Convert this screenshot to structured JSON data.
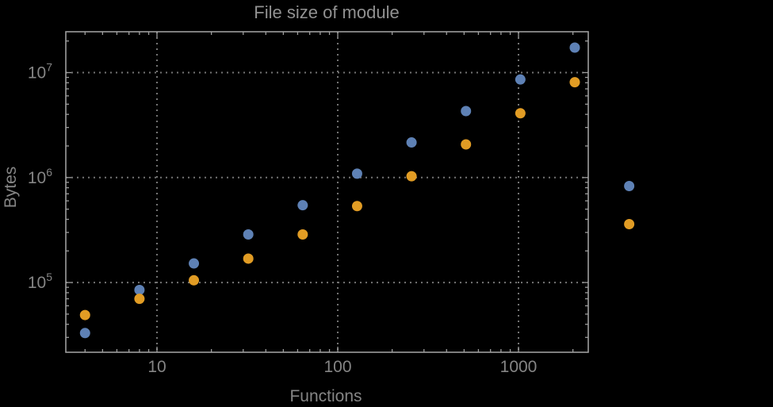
{
  "title": "File size of module",
  "axes": {
    "x_label": "Functions",
    "y_label": "Bytes",
    "x_tick_labels": [
      "10",
      "100",
      "1000"
    ],
    "y_tick_base": "10",
    "y_tick_exponents": [
      "5",
      "6",
      "7"
    ]
  },
  "colors": {
    "background": "#000000",
    "frame": "#9e9e9e",
    "grid": "#747474",
    "text": "#858585",
    "title_text": "#919191",
    "series1": "#5e81b5",
    "series2": "#e19c24"
  },
  "chart_data": {
    "type": "scatter",
    "title": "File size of module",
    "xlabel": "Functions",
    "ylabel": "Bytes",
    "xscale": "log",
    "yscale": "log",
    "xlim": [
      3.1,
      2430
    ],
    "ylim": [
      21500,
      24800000
    ],
    "grid": "dotted",
    "legend": "none",
    "x_ticks": [
      10,
      100,
      1000
    ],
    "y_ticks": [
      100000,
      1000000,
      10000000
    ],
    "x": [
      4,
      8,
      16,
      32,
      64,
      128,
      256,
      512,
      1024,
      2048,
      4096
    ],
    "series": [
      {
        "name": "blue",
        "color": "#5e81b5",
        "values": [
          33000,
          85000,
          152000,
          287000,
          545000,
          1090000,
          2160000,
          4300000,
          8600000,
          17300000,
          830000
        ]
      },
      {
        "name": "orange",
        "color": "#e19c24",
        "values": [
          49000,
          70000,
          105000,
          169000,
          287000,
          535000,
          1030000,
          2070000,
          4100000,
          8100000,
          360000
        ]
      }
    ],
    "note": "points at x=4096 are drawn outside the plot frame (clipping off)"
  }
}
